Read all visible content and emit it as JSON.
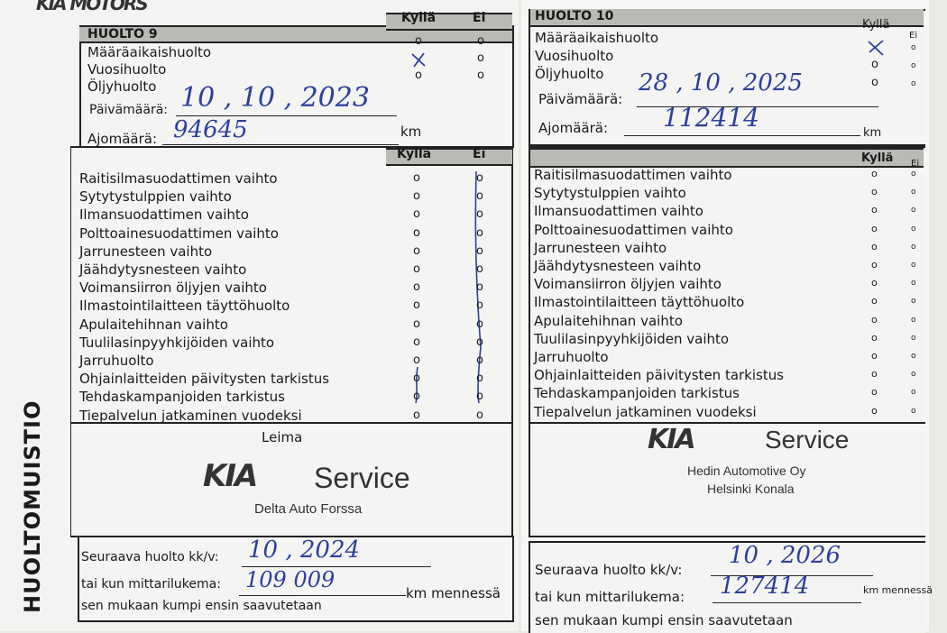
{
  "brand_header": "KIA MOTORS",
  "side_title": "HUOLTOMUISTIO",
  "col_yes": "Kyllä",
  "col_no": "Ei",
  "service_types": [
    "Määräaikaishuolto",
    "Vuosihuolto",
    "Öljyhuolto"
  ],
  "date_label": "Päivämäärä:",
  "mileage_label": "Ajomäärä:",
  "km": "km",
  "checklist": [
    "Raitisilmasuodattimen vaihto",
    "Sytytystulppien vaihto",
    "Ilmansuodattimen vaihto",
    "Polttoainesuodattimen vaihto",
    "Jarrunesteen vaihto",
    "Jäähdytysnesteen vaihto",
    "Voimansiirron öljyjen vaihto",
    "Ilmastointilaitteen täyttöhuolto",
    "Apulaitehihnan vaihto",
    "Tuulilasinpyyhkijöiden vaihto",
    "Jarruhuolto",
    "Ohjainlaitteiden päivitysten tarkistus",
    "Tehdaskampanjoiden tarkistus",
    "Tiepalvelun jatkaminen vuodeksi"
  ],
  "stamp_label": "Leima",
  "next_service_label": "Seuraava huolto kk/v:",
  "odometer_label": "tai kun mittarilukema:",
  "km_by": "km mennessä",
  "whichever": "sen mukaan kumpi ensin saavutetaan",
  "ink_color": "#2b3f9e",
  "left": {
    "title": "HUOLTO 9",
    "checked_service": "Vuosihuolto",
    "date": "10 , 10 , 2023",
    "mileage": "94645",
    "stamp_brand": "KIA",
    "stamp_service": "Service",
    "stamp_dealer": "Delta Auto Forssa",
    "next_date": "10 , 2024",
    "next_km": "109 009"
  },
  "right": {
    "title": "HUOLTO 10",
    "checked_service": "Määräaikaishuolto",
    "date": "28 , 10 , 2025",
    "mileage": "112414",
    "stamp_brand": "KIA",
    "stamp_service": "Service",
    "stamp_dealer_1": "Hedin Automotive Oy",
    "stamp_dealer_2": "Helsinki Konala",
    "next_date": "10 , 2026",
    "next_km": "127414"
  }
}
